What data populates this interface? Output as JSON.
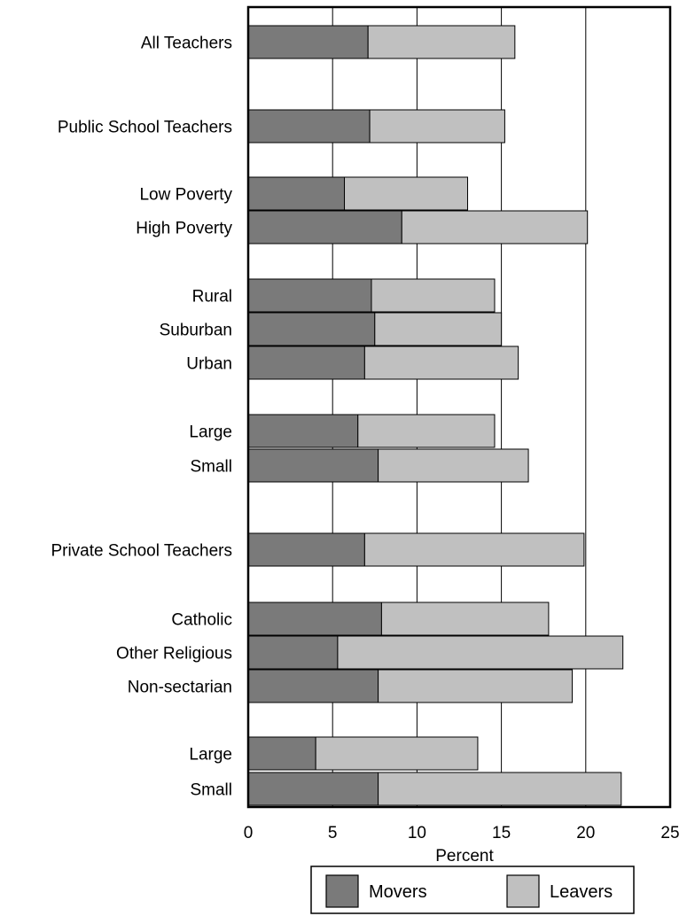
{
  "chart_data": {
    "type": "bar",
    "orientation": "horizontal",
    "stacked": true,
    "categories": [
      "All Teachers",
      "Public School Teachers",
      "Low Poverty",
      "High Poverty",
      "Rural",
      "Suburban",
      "Urban",
      "Large",
      "Small",
      "Private School Teachers",
      "Catholic",
      "Other Religious",
      "Non-sectarian",
      "Large",
      "Small"
    ],
    "series": [
      {
        "name": "Movers",
        "color": "#7a7a7a",
        "values": [
          7.1,
          7.2,
          5.7,
          9.1,
          7.3,
          7.5,
          6.9,
          6.5,
          7.7,
          6.9,
          7.9,
          5.3,
          7.7,
          4.0,
          7.7
        ]
      },
      {
        "name": "Leavers",
        "color": "#c0c0c0",
        "values": [
          8.7,
          8.0,
          7.3,
          11.0,
          7.3,
          7.5,
          9.1,
          8.1,
          8.9,
          13.0,
          9.9,
          16.9,
          11.5,
          9.6,
          14.4
        ]
      }
    ],
    "xlabel": "Percent",
    "xlim": [
      0,
      25
    ],
    "xticks": [
      "0",
      "5",
      "10",
      "15",
      "20",
      "25"
    ],
    "grid": "vertical",
    "legend_position": "bottom"
  }
}
